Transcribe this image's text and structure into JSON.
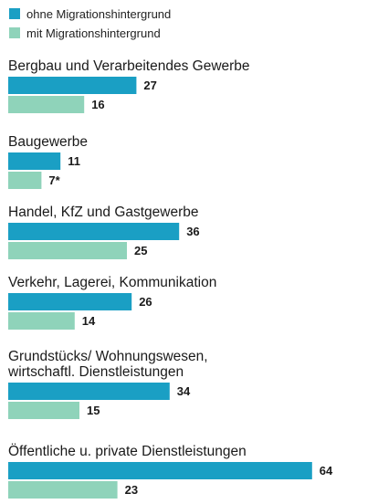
{
  "chart_data": {
    "type": "bar",
    "orientation": "horizontal",
    "title": "",
    "xlabel": "",
    "ylabel": "",
    "xlim": [
      0,
      64
    ],
    "grid": false,
    "legend_position": "top-left",
    "categories": [
      [
        "Bergbau und Verarbeitendes Gewerbe"
      ],
      [
        "Baugewerbe"
      ],
      [
        "Handel, KfZ und Gastgewerbe"
      ],
      [
        "Verkehr, Lagerei, Kommunikation"
      ],
      [
        "Grundstücks/ Wohnungswesen,",
        "wirtschaftl. Dienstleistungen"
      ],
      [
        "Öffentliche u. private Dienstleistungen"
      ]
    ],
    "series": [
      {
        "name": "ohne Migrationshintergrund",
        "color": "#1a9fc4",
        "values": [
          27,
          11,
          36,
          26,
          34,
          64
        ],
        "labels": [
          "27",
          "11",
          "36",
          "26",
          "34",
          "64"
        ]
      },
      {
        "name": "mit Migrationshintergrund",
        "color": "#8fd3ba",
        "values": [
          16,
          7,
          25,
          14,
          15,
          23
        ],
        "labels": [
          "16",
          "7*",
          "25",
          "14",
          "15",
          "23"
        ]
      }
    ]
  }
}
